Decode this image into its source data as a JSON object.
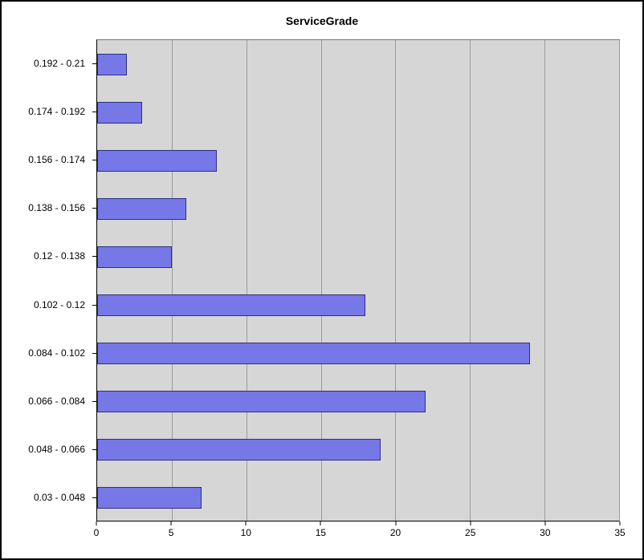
{
  "chart_data": {
    "type": "bar",
    "orientation": "horizontal",
    "title": "ServiceGrade",
    "categories": [
      "0.192 - 0.21",
      "0.174 - 0.192",
      "0.156 - 0.174",
      "0.138 - 0.156",
      "0.12 - 0.138",
      "0.102 - 0.12",
      "0.084 - 0.102",
      "0.066 - 0.084",
      "0.048 - 0.066",
      "0.03 - 0.048"
    ],
    "values": [
      2,
      3,
      8,
      6,
      5,
      18,
      29,
      22,
      19,
      7
    ],
    "xlim": [
      0,
      35
    ],
    "x_ticks": [
      0,
      5,
      10,
      15,
      20,
      25,
      30,
      35
    ],
    "grid": true,
    "legend": "none",
    "colors": {
      "bar_fill": "#7678e8",
      "bar_border": "#2f2f7f",
      "plot_bg": "#d6d6d6",
      "grid_line": "#9c9c9c"
    }
  }
}
